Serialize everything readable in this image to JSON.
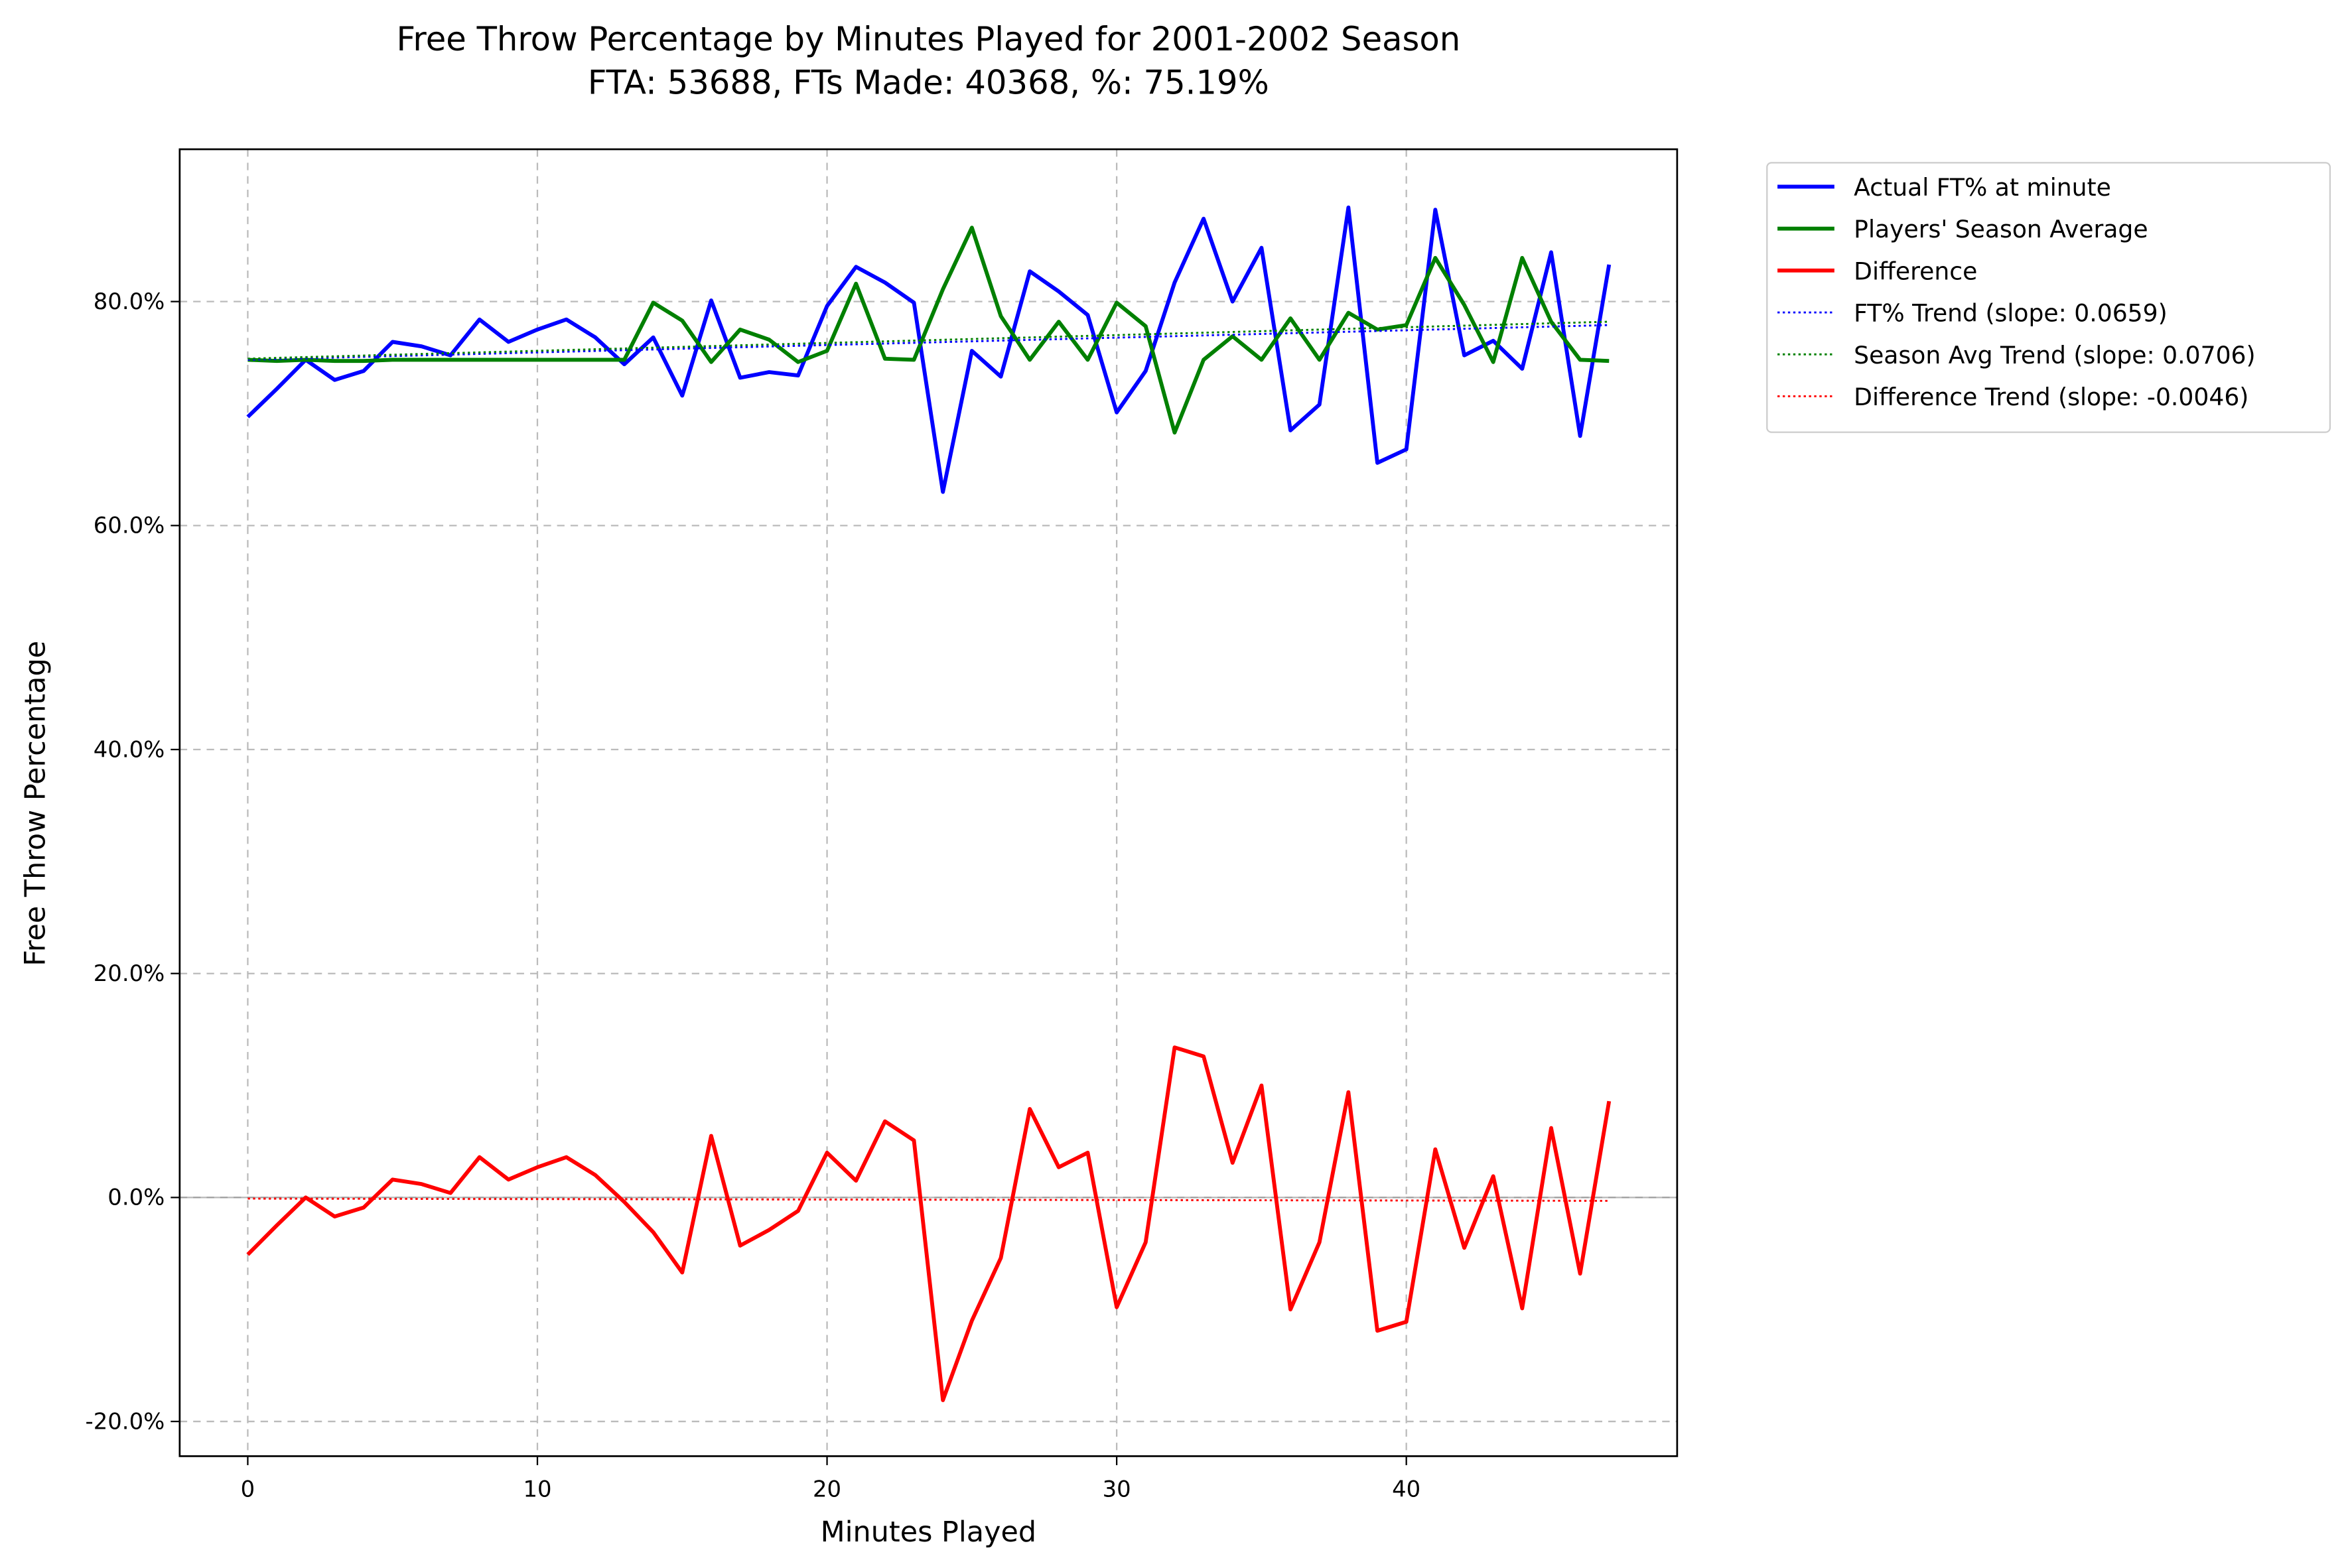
{
  "chart_data": {
    "type": "line",
    "title": "Free Throw Percentage by Minutes Played for 2001-2002 Season",
    "subtitle": "FTA: 53688, FTs Made: 40368, %: 75.19%",
    "x_label": "Minutes Played",
    "y_label": "Free Throw Percentage",
    "x": [
      0,
      1,
      2,
      3,
      4,
      5,
      6,
      7,
      8,
      9,
      10,
      11,
      12,
      13,
      14,
      15,
      16,
      17,
      18,
      19,
      20,
      21,
      22,
      23,
      24,
      25,
      26,
      27,
      28,
      29,
      30,
      31,
      32,
      33,
      34,
      35,
      36,
      37,
      38,
      39,
      40,
      41,
      42,
      43,
      44,
      45,
      46,
      47
    ],
    "series": [
      {
        "name": "Actual FT% at minute",
        "color": "#0000ff",
        "style": "solid",
        "values": [
          69.7,
          72.2,
          74.8,
          73.0,
          73.8,
          76.4,
          76.0,
          75.2,
          78.4,
          76.4,
          77.5,
          78.4,
          76.8,
          74.4,
          76.8,
          71.6,
          80.1,
          73.2,
          73.7,
          73.4,
          79.6,
          83.1,
          81.7,
          79.9,
          63.0,
          75.6,
          73.3,
          82.7,
          80.9,
          78.8,
          70.1,
          73.8,
          81.7,
          87.4,
          80.0,
          84.8,
          68.5,
          70.8,
          88.4,
          65.6,
          66.8,
          88.2,
          75.2,
          76.5,
          74.0,
          84.4,
          68.0,
          83.3
        ]
      },
      {
        "name": "Players' Season Average",
        "color": "#008000",
        "style": "solid",
        "values": [
          74.8,
          74.7,
          74.8,
          74.7,
          74.7,
          74.8,
          74.8,
          74.8,
          74.8,
          74.8,
          74.8,
          74.8,
          74.8,
          74.8,
          79.9,
          78.3,
          74.6,
          77.5,
          76.6,
          74.6,
          75.6,
          81.6,
          74.9,
          74.8,
          81.1,
          86.6,
          78.7,
          74.8,
          78.2,
          74.8,
          79.9,
          77.8,
          68.3,
          74.8,
          76.9,
          74.8,
          78.5,
          74.8,
          79.0,
          77.5,
          77.9,
          83.9,
          79.7,
          74.6,
          83.9,
          78.2,
          74.8,
          74.7
        ]
      },
      {
        "name": "Difference",
        "color": "#ff0000",
        "style": "solid",
        "values": [
          -5.1,
          -2.5,
          0,
          -1.7,
          -0.9,
          1.6,
          1.2,
          0.4,
          3.6,
          1.6,
          2.7,
          3.6,
          2.0,
          -0.4,
          -3.1,
          -6.7,
          5.5,
          -4.3,
          -2.9,
          -1.2,
          4.0,
          1.5,
          6.8,
          5.1,
          -18.1,
          -11.0,
          -5.4,
          7.9,
          2.7,
          4.0,
          -9.8,
          -4.0,
          13.4,
          12.6,
          3.1,
          10.0,
          -10.0,
          -4.0,
          9.4,
          -11.9,
          -11.1,
          4.3,
          -4.5,
          1.9,
          -9.9,
          6.2,
          -6.8,
          8.6
        ]
      },
      {
        "name": "FT% Trend (slope: 0.0659)",
        "color": "#0000ff",
        "style": "dotted",
        "x": [
          0,
          47
        ],
        "values": [
          74.8,
          77.9
        ]
      },
      {
        "name": "Season Avg Trend (slope: 0.0706)",
        "color": "#008000",
        "style": "dotted",
        "x": [
          0,
          47
        ],
        "values": [
          74.9,
          78.2
        ]
      },
      {
        "name": "Difference Trend (slope: -0.0046)",
        "color": "#ff0000",
        "style": "dotted",
        "x": [
          0,
          47
        ],
        "values": [
          -0.1,
          -0.3
        ]
      }
    ],
    "reference_line": 0,
    "xlim": [
      -2.35,
      49.35
    ],
    "xticks": [
      0,
      10,
      20,
      30,
      40
    ],
    "ylim": [
      -23.1,
      93.6
    ],
    "yticks": [
      {
        "value": -20,
        "label": "-20.0%"
      },
      {
        "value": 0,
        "label": "0.0%"
      },
      {
        "value": 20,
        "label": "20.0%"
      },
      {
        "value": 40,
        "label": "40.0%"
      },
      {
        "value": 60,
        "label": "60.0%"
      },
      {
        "value": 80,
        "label": "80.0%"
      }
    ],
    "grid": true,
    "legend": "outside-upper-right"
  }
}
